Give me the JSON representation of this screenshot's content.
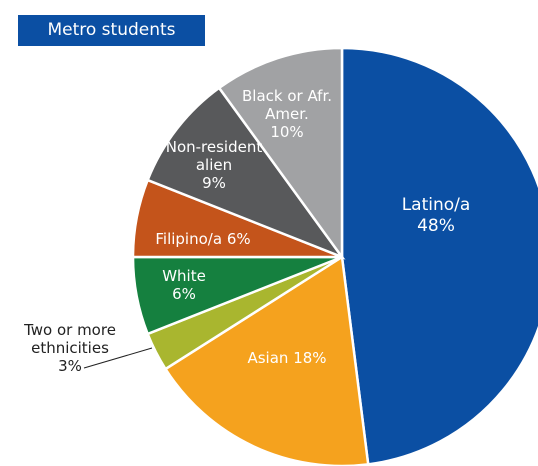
{
  "chart_data": {
    "type": "pie",
    "title": "Metro students",
    "categories": [
      "Latino/a",
      "Asian",
      "Two or more ethnicities",
      "White",
      "Filipino/a",
      "Non-resident alien",
      "Black or Afr. Amer."
    ],
    "values": [
      48,
      18,
      3,
      6,
      6,
      9,
      10
    ],
    "value_labels": [
      "48%",
      "18%",
      "3%",
      "6%",
      "6%",
      "9%",
      "10%"
    ],
    "colors": [
      "#0b4fa3",
      "#f5a21e",
      "#a9b62f",
      "#15803f",
      "#c4541b",
      "#58595b",
      "#a1a2a4"
    ]
  }
}
